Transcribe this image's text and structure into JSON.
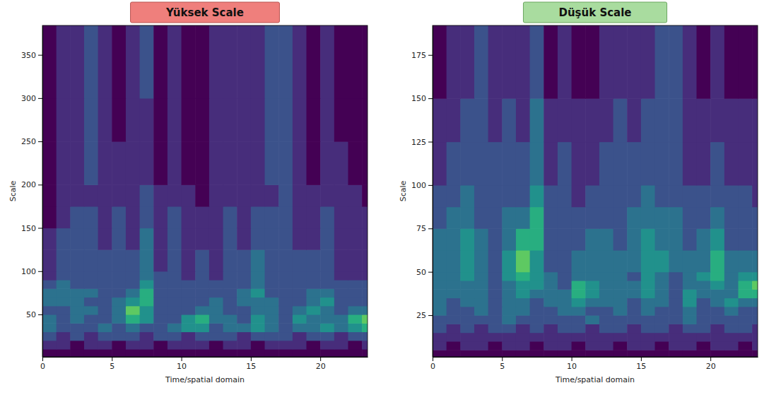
{
  "chart_data": [
    {
      "type": "heatmap",
      "title": "Yüksek Scale",
      "xlabel": "Time/spatial domain",
      "ylabel": "Scale",
      "color": "viridis",
      "zlim": [
        1,
        9
      ],
      "xlim": [
        0,
        23.4
      ],
      "ylim": [
        1,
        384
      ],
      "xticks": [
        0,
        5,
        10,
        15,
        20
      ],
      "yticks": [
        50,
        100,
        150,
        200,
        250,
        300,
        350
      ],
      "x_edges": [
        0,
        1,
        2,
        3,
        4,
        5,
        6,
        7,
        8,
        9,
        10,
        11,
        12,
        13,
        14,
        15,
        16,
        17,
        18,
        19,
        20,
        21,
        22,
        23,
        23.4
      ],
      "y_edges": [
        1,
        10,
        20,
        30,
        40,
        50,
        60,
        70,
        80,
        90,
        100,
        125,
        150,
        175,
        200,
        250,
        300,
        384
      ],
      "cells": [
        [
          1,
          1,
          1,
          1,
          1,
          1,
          1,
          1,
          1,
          1,
          1,
          1,
          1,
          1,
          1,
          1,
          1,
          1,
          1,
          1,
          1,
          1,
          1,
          1
        ],
        [
          2,
          2,
          1,
          2,
          2,
          1,
          2,
          2,
          1,
          2,
          2,
          2,
          1,
          2,
          2,
          1,
          2,
          2,
          2,
          1,
          2,
          2,
          1,
          2
        ],
        [
          3,
          2,
          3,
          2,
          3,
          3,
          3,
          2,
          3,
          3,
          2,
          3,
          3,
          3,
          2,
          3,
          3,
          3,
          2,
          3,
          3,
          2,
          3,
          3
        ],
        [
          4,
          3,
          3,
          3,
          4,
          3,
          4,
          3,
          3,
          4,
          5,
          5,
          3,
          4,
          4,
          5,
          4,
          3,
          4,
          4,
          5,
          4,
          5,
          6
        ],
        [
          4,
          3,
          4,
          3,
          3,
          4,
          6,
          5,
          3,
          3,
          5,
          6,
          4,
          4,
          3,
          5,
          4,
          3,
          5,
          4,
          4,
          4,
          6,
          7
        ],
        [
          3,
          3,
          4,
          4,
          3,
          4,
          7,
          5,
          3,
          3,
          3,
          4,
          4,
          3,
          3,
          4,
          4,
          3,
          4,
          5,
          4,
          3,
          4,
          4
        ],
        [
          4,
          4,
          4,
          3,
          3,
          4,
          5,
          6,
          3,
          3,
          3,
          3,
          4,
          3,
          4,
          4,
          4,
          3,
          3,
          4,
          5,
          3,
          3,
          3
        ],
        [
          4,
          4,
          4,
          4,
          3,
          3,
          4,
          6,
          3,
          3,
          3,
          3,
          3,
          3,
          4,
          5,
          3,
          3,
          3,
          4,
          4,
          3,
          3,
          3
        ],
        [
          3,
          4,
          3,
          3,
          3,
          3,
          3,
          5,
          3,
          3,
          3,
          3,
          3,
          3,
          3,
          4,
          3,
          3,
          3,
          3,
          3,
          3,
          3,
          3
        ],
        [
          2,
          3,
          3,
          3,
          3,
          3,
          3,
          4,
          3,
          3,
          2,
          3,
          2,
          3,
          3,
          4,
          3,
          3,
          3,
          3,
          3,
          2,
          2,
          2
        ],
        [
          2,
          3,
          3,
          3,
          3,
          3,
          3,
          4,
          2,
          3,
          2,
          3,
          2,
          3,
          3,
          4,
          3,
          3,
          3,
          3,
          3,
          2,
          2,
          2
        ],
        [
          2,
          3,
          3,
          3,
          2,
          3,
          2,
          4,
          2,
          3,
          2,
          2,
          2,
          3,
          2,
          3,
          3,
          3,
          2,
          2,
          3,
          2,
          2,
          2
        ],
        [
          1,
          2,
          3,
          3,
          2,
          3,
          2,
          3,
          2,
          3,
          2,
          2,
          2,
          3,
          2,
          3,
          3,
          3,
          2,
          2,
          3,
          2,
          2,
          2
        ],
        [
          1,
          2,
          2,
          2,
          2,
          2,
          2,
          3,
          2,
          2,
          2,
          1,
          2,
          2,
          2,
          2,
          2,
          3,
          2,
          2,
          2,
          2,
          2,
          1
        ],
        [
          1,
          2,
          2,
          3,
          2,
          2,
          2,
          2,
          1,
          2,
          1,
          1,
          2,
          2,
          2,
          2,
          3,
          3,
          2,
          1,
          2,
          2,
          1,
          1
        ],
        [
          1,
          2,
          2,
          3,
          2,
          1,
          2,
          2,
          1,
          2,
          1,
          1,
          2,
          2,
          2,
          2,
          3,
          3,
          2,
          1,
          2,
          1,
          1,
          1
        ],
        [
          1,
          2,
          2,
          3,
          2,
          1,
          2,
          3,
          1,
          2,
          1,
          1,
          2,
          2,
          2,
          2,
          3,
          3,
          2,
          1,
          2,
          1,
          1,
          1
        ]
      ]
    },
    {
      "type": "heatmap",
      "title": "Düşük Scale",
      "xlabel": "Time/spatial domain",
      "ylabel": "Scale",
      "color": "viridis",
      "zlim": [
        1,
        9
      ],
      "xlim": [
        0,
        23.4
      ],
      "ylim": [
        1,
        192
      ],
      "xticks": [
        0,
        5,
        10,
        15,
        20
      ],
      "yticks": [
        25,
        50,
        75,
        100,
        125,
        150,
        175
      ],
      "x_edges": [
        0,
        1,
        2,
        3,
        4,
        5,
        6,
        7,
        8,
        9,
        10,
        11,
        12,
        13,
        14,
        15,
        16,
        17,
        18,
        19,
        20,
        21,
        22,
        23,
        23.4
      ],
      "y_edges": [
        1,
        5,
        10,
        15,
        20,
        25,
        30,
        35,
        40,
        45,
        50,
        62.5,
        75,
        87.5,
        100,
        125,
        150,
        192
      ],
      "cells": [
        [
          1,
          1,
          1,
          1,
          1,
          1,
          1,
          1,
          1,
          1,
          1,
          1,
          1,
          1,
          1,
          1,
          1,
          1,
          1,
          1,
          1,
          1,
          1,
          1
        ],
        [
          2,
          1,
          2,
          2,
          1,
          2,
          2,
          1,
          2,
          2,
          1,
          2,
          2,
          1,
          2,
          2,
          1,
          2,
          2,
          1,
          2,
          2,
          1,
          2
        ],
        [
          2,
          2,
          2,
          2,
          2,
          2,
          2,
          2,
          2,
          2,
          2,
          2,
          2,
          2,
          2,
          2,
          2,
          2,
          2,
          2,
          2,
          2,
          2,
          2
        ],
        [
          3,
          2,
          3,
          2,
          3,
          3,
          2,
          3,
          2,
          3,
          3,
          2,
          3,
          3,
          2,
          3,
          3,
          2,
          3,
          3,
          2,
          3,
          3,
          2
        ],
        [
          3,
          3,
          3,
          3,
          3,
          4,
          3,
          3,
          3,
          3,
          3,
          4,
          3,
          3,
          3,
          3,
          3,
          3,
          4,
          3,
          3,
          3,
          3,
          3
        ],
        [
          4,
          3,
          3,
          4,
          3,
          4,
          4,
          3,
          3,
          4,
          4,
          3,
          3,
          4,
          3,
          4,
          3,
          3,
          4,
          3,
          3,
          4,
          3,
          3
        ],
        [
          4,
          3,
          4,
          4,
          3,
          4,
          4,
          3,
          4,
          4,
          5,
          4,
          4,
          4,
          3,
          4,
          4,
          3,
          5,
          3,
          4,
          5,
          4,
          4
        ],
        [
          4,
          4,
          4,
          4,
          3,
          4,
          5,
          4,
          4,
          4,
          6,
          5,
          4,
          4,
          4,
          5,
          4,
          3,
          5,
          4,
          4,
          4,
          6,
          6
        ],
        [
          4,
          4,
          4,
          4,
          3,
          4,
          5,
          5,
          4,
          3,
          6,
          5,
          4,
          4,
          4,
          5,
          4,
          3,
          4,
          4,
          5,
          4,
          6,
          7
        ],
        [
          4,
          4,
          5,
          4,
          3,
          5,
          6,
          5,
          4,
          3,
          4,
          4,
          4,
          4,
          3,
          5,
          4,
          3,
          4,
          5,
          6,
          4,
          5,
          5
        ],
        [
          4,
          4,
          5,
          4,
          3,
          5,
          7,
          5,
          3,
          3,
          4,
          4,
          4,
          4,
          4,
          5,
          5,
          4,
          4,
          4,
          6,
          4,
          4,
          4
        ],
        [
          4,
          4,
          5,
          4,
          3,
          4,
          6,
          6,
          3,
          3,
          3,
          4,
          4,
          3,
          4,
          5,
          4,
          4,
          3,
          4,
          5,
          3,
          3,
          3
        ],
        [
          3,
          4,
          4,
          3,
          3,
          4,
          4,
          6,
          3,
          3,
          3,
          3,
          3,
          3,
          4,
          4,
          4,
          4,
          3,
          3,
          4,
          3,
          3,
          3
        ],
        [
          3,
          3,
          4,
          3,
          3,
          3,
          3,
          5,
          3,
          3,
          2,
          3,
          3,
          3,
          3,
          4,
          3,
          3,
          3,
          3,
          3,
          3,
          3,
          2
        ],
        [
          2,
          3,
          3,
          3,
          3,
          3,
          3,
          4,
          2,
          3,
          2,
          2,
          3,
          3,
          3,
          3,
          3,
          3,
          2,
          2,
          3,
          2,
          2,
          2
        ],
        [
          2,
          2,
          3,
          3,
          2,
          3,
          2,
          4,
          2,
          2,
          2,
          2,
          2,
          3,
          2,
          3,
          3,
          3,
          2,
          2,
          2,
          2,
          2,
          2
        ],
        [
          1,
          2,
          2,
          3,
          2,
          2,
          2,
          3,
          1,
          2,
          1,
          1,
          2,
          2,
          2,
          2,
          3,
          3,
          2,
          1,
          2,
          1,
          1,
          1
        ]
      ]
    }
  ]
}
